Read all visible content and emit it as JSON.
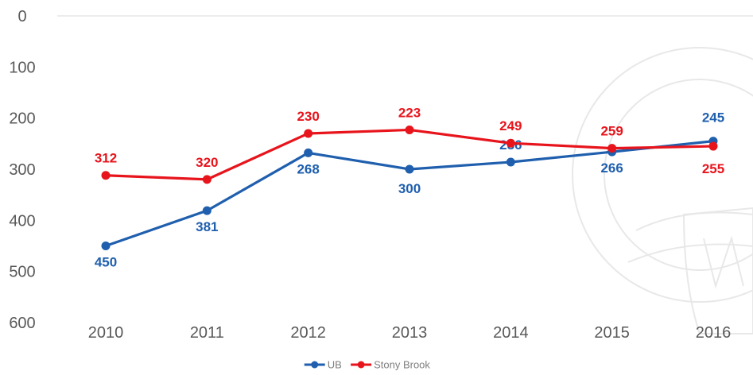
{
  "chart_data": {
    "type": "line",
    "categories": [
      "2010",
      "2011",
      "2012",
      "2013",
      "2014",
      "2015",
      "2016"
    ],
    "series": [
      {
        "name": "UB",
        "color": "#1f5fae",
        "values": [
          450,
          381,
          268,
          300,
          286,
          266,
          245
        ]
      },
      {
        "name": "Stony Brook",
        "color": "#e8141c",
        "values": [
          312,
          320,
          230,
          223,
          249,
          259,
          255
        ]
      }
    ],
    "yaxis": {
      "reversed": true,
      "ylim": [
        0,
        600
      ],
      "ticks": [
        "0",
        "100",
        "200",
        "300",
        "400",
        "500",
        "600"
      ]
    },
    "data_labels": true,
    "legend": "bottom-center",
    "grid": false
  }
}
